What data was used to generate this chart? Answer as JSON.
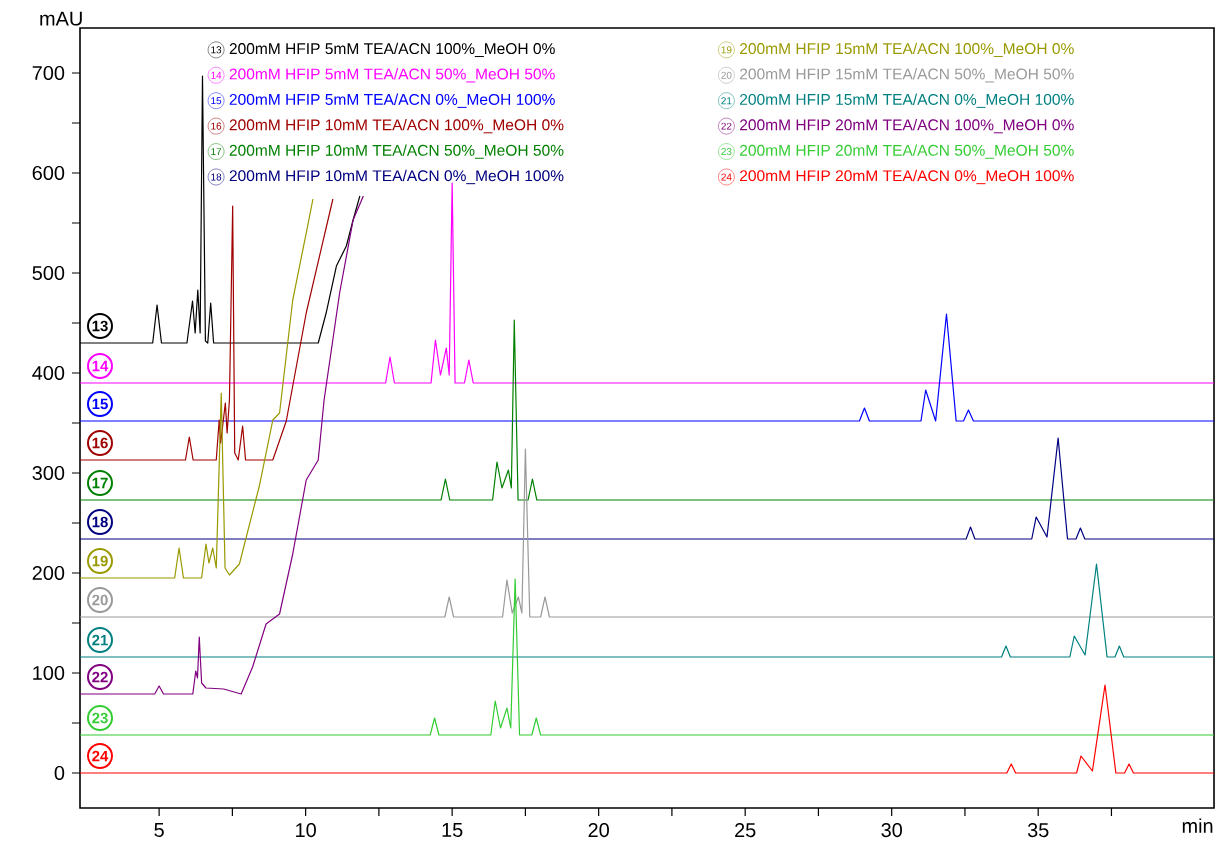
{
  "chart_data": {
    "type": "line",
    "xlabel": "min",
    "ylabel": "mAU",
    "xlim": [
      2.3,
      41
    ],
    "ylim": [
      -35,
      745
    ],
    "xticks": [
      5,
      {
        "value": 7.5,
        "label": null
      },
      10,
      {
        "value": 12.5,
        "label": null
      },
      15,
      {
        "value": 17.5,
        "label": null
      },
      20,
      {
        "value": 22.5,
        "label": null
      },
      25,
      {
        "value": 27.5,
        "label": null
      },
      30,
      {
        "value": 32.5,
        "label": null
      },
      35,
      {
        "value": 37.5,
        "label": null
      }
    ],
    "yticks": [
      0,
      {
        "value": 50,
        "label": null
      },
      100,
      {
        "value": 150,
        "label": null
      },
      200,
      {
        "value": 250,
        "label": null
      },
      300,
      {
        "value": 350,
        "label": null
      },
      400,
      {
        "value": 450,
        "label": null
      },
      500,
      {
        "value": 550,
        "label": null
      },
      600,
      {
        "value": 650,
        "label": null
      },
      700
    ],
    "grid": false,
    "legend": "top",
    "marker": "none",
    "line_style": "solid",
    "annotations": [
      "13",
      "14",
      "15",
      "16",
      "17",
      "18",
      "19",
      "20",
      "21",
      "22",
      "23",
      "24"
    ],
    "series": [
      {
        "name": "200mM HFIP 5mM TEA/ACN  100%_MeOH 0%",
        "color": "#000000",
        "x": [
          2.3,
          4.78,
          4.93,
          5.08,
          5.95,
          6.14,
          6.23,
          6.32,
          6.4,
          6.48,
          6.58,
          6.66,
          6.76,
          6.86,
          10.43,
          10.7,
          11.05,
          11.39,
          11.62,
          11.85
        ],
        "values": [
          430,
          430,
          468,
          430,
          430,
          472,
          440,
          483,
          440,
          697,
          432,
          430,
          470,
          430,
          430,
          460,
          507,
          527,
          553,
          577
        ]
      },
      {
        "name": "200mM HFIP 5mM TEA/ACN  50%_MeOH 50%",
        "color": "#ff00ff",
        "x": [
          2.3,
          12.73,
          12.88,
          13.03,
          14.28,
          14.43,
          14.6,
          14.8,
          14.9,
          15.0,
          15.1,
          15.42,
          15.57,
          15.72,
          41
        ],
        "values": [
          390,
          390,
          416,
          390,
          390,
          433,
          398,
          425,
          398,
          590,
          390,
          390,
          413,
          390,
          390
        ]
      },
      {
        "name": "200mM HFIP 5mM TEA/ACN  0%_MeOH 100%",
        "color": "#0000ff",
        "x": [
          2.3,
          28.9,
          29.07,
          29.24,
          31.0,
          31.16,
          31.5,
          31.87,
          32.2,
          32.45,
          32.62,
          32.79,
          41
        ],
        "values": [
          352,
          352,
          365,
          352,
          352,
          383,
          352,
          459,
          352,
          352,
          363,
          352,
          352
        ]
      },
      {
        "name": "200mM HFIP 10mM TEA/ACN  100%_MeOH 0%",
        "color": "#a00000",
        "x": [
          2.3,
          5.9,
          6.03,
          6.16,
          6.95,
          7.05,
          7.1,
          7.26,
          7.32,
          7.4,
          7.51,
          7.58,
          7.7,
          7.85,
          7.95,
          8.88,
          9.34,
          10.02,
          10.93
        ],
        "values": [
          313,
          313,
          336,
          313,
          313,
          353,
          330,
          370,
          340,
          373,
          567,
          320,
          313,
          347,
          313,
          313,
          352,
          460,
          574
        ]
      },
      {
        "name": "200mM HFIP 10mM TEA/ACN  50%_MeOH 50%",
        "color": "#008000",
        "x": [
          2.3,
          14.62,
          14.77,
          14.92,
          16.38,
          16.53,
          16.7,
          16.92,
          17.02,
          17.12,
          17.25,
          17.59,
          17.74,
          17.89,
          41
        ],
        "values": [
          273,
          273,
          294,
          273,
          273,
          311,
          285,
          303,
          285,
          453,
          273,
          273,
          294,
          273,
          273
        ]
      },
      {
        "name": "200mM HFIP 10mM TEA/ACN  0%_MeOH 100%",
        "color": "#000080",
        "x": [
          2.3,
          32.54,
          32.69,
          32.84,
          34.78,
          34.93,
          35.3,
          35.68,
          36.0,
          36.29,
          36.44,
          36.59,
          41
        ],
        "values": [
          234,
          234,
          246,
          234,
          234,
          256,
          236,
          335,
          234,
          234,
          245,
          234,
          234
        ]
      },
      {
        "name": "200mM HFIP 15mM TEA/ACN  100%_MeOH 0%",
        "color": "#999900",
        "x": [
          2.3,
          5.53,
          5.68,
          5.83,
          6.45,
          6.6,
          6.7,
          6.83,
          6.95,
          7.12,
          7.25,
          7.4,
          7.74,
          8.42,
          8.88,
          9.11,
          9.56,
          10.02,
          10.25
        ],
        "values": [
          195,
          195,
          225,
          195,
          195,
          229,
          210,
          225,
          205,
          380,
          205,
          198,
          209,
          287,
          353,
          360,
          473,
          540,
          574
        ]
      },
      {
        "name": "200mM HFIP 15mM TEA/ACN  50%_MeOH 50%",
        "color": "#999999",
        "x": [
          2.3,
          14.75,
          14.9,
          15.05,
          16.72,
          16.87,
          17.05,
          17.26,
          17.38,
          17.5,
          17.65,
          18.02,
          18.17,
          18.32,
          41
        ],
        "values": [
          156,
          156,
          176,
          156,
          156,
          193,
          160,
          176,
          160,
          324,
          156,
          156,
          176,
          156,
          156
        ]
      },
      {
        "name": "200mM HFIP 15mM TEA/ACN  0%_MeOH 100%",
        "color": "#008080",
        "x": [
          2.3,
          33.75,
          33.9,
          34.05,
          36.08,
          36.23,
          36.6,
          36.99,
          37.35,
          37.62,
          37.77,
          37.92,
          41
        ],
        "values": [
          116,
          116,
          127,
          116,
          116,
          137,
          118,
          209,
          116,
          116,
          127,
          116,
          116
        ]
      },
      {
        "name": "200mM HFIP 20mM TEA/ACN  100%_MeOH 0%",
        "color": "#800080",
        "x": [
          2.3,
          4.85,
          5.0,
          5.15,
          6.15,
          6.25,
          6.31,
          6.37,
          6.45,
          6.6,
          7.2,
          7.8,
          8.19,
          8.65,
          9.11,
          9.56,
          10.02,
          10.43,
          10.63,
          11.16,
          11.62,
          11.97
        ],
        "values": [
          79,
          79,
          87,
          79,
          79,
          102,
          95,
          136,
          90,
          85,
          84,
          79,
          106,
          149,
          159,
          219,
          293,
          313,
          373,
          480,
          553,
          577
        ]
      },
      {
        "name": "200mM HFIP 20mM TEA/ACN  50%_MeOH 50%",
        "color": "#33cc33",
        "x": [
          2.3,
          14.25,
          14.4,
          14.55,
          16.32,
          16.47,
          16.65,
          16.87,
          17.0,
          17.15,
          17.3,
          17.72,
          17.87,
          18.02,
          41
        ],
        "values": [
          38,
          38,
          55,
          38,
          38,
          72,
          45,
          65,
          45,
          194,
          38,
          38,
          55,
          38,
          38
        ]
      },
      {
        "name": "200mM HFIP 20mM TEA/ACN  0%_MeOH 100%",
        "color": "#ff0000",
        "x": [
          2.3,
          33.93,
          34.08,
          34.23,
          36.31,
          36.46,
          36.85,
          37.28,
          37.65,
          37.95,
          38.1,
          38.25,
          41
        ],
        "values": [
          0,
          0,
          9,
          0,
          0,
          17,
          2,
          88,
          0,
          0,
          9,
          0,
          0
        ]
      }
    ]
  }
}
